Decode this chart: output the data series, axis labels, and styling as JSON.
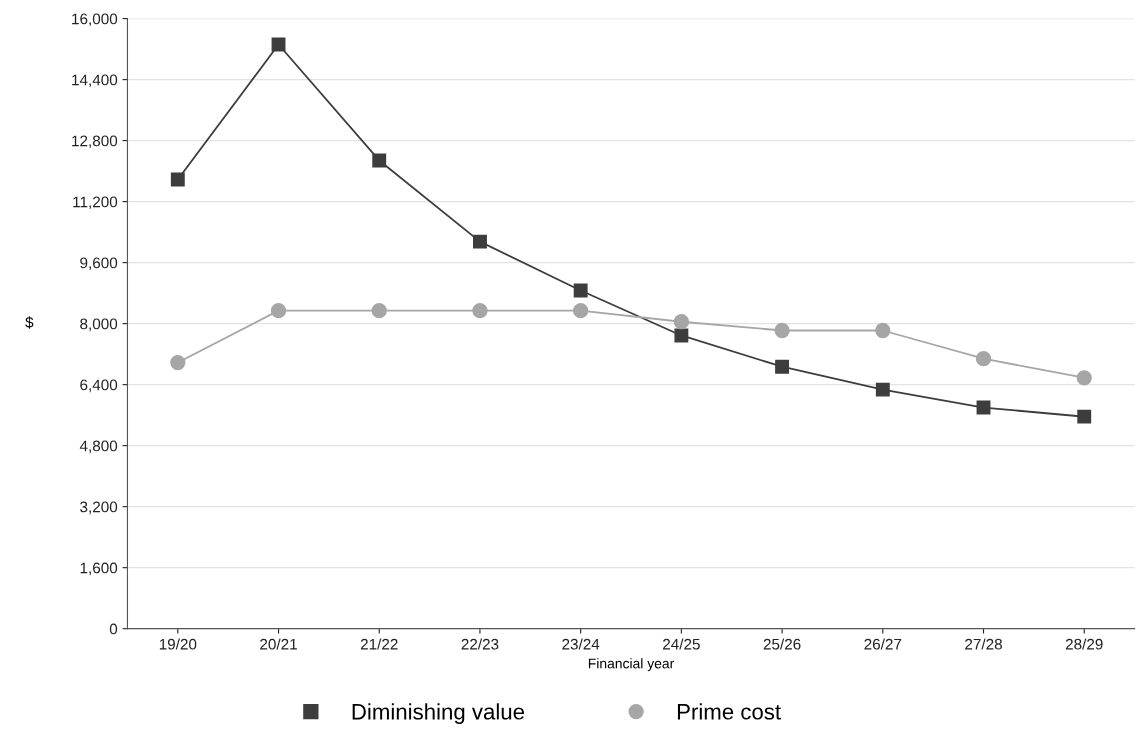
{
  "chart_data": {
    "type": "line",
    "xlabel": "Financial year",
    "ylabel": "$",
    "categories": [
      "19/20",
      "20/21",
      "21/22",
      "22/23",
      "23/24",
      "24/25",
      "25/26",
      "26/27",
      "27/28",
      "28/29"
    ],
    "series": [
      {
        "name": "Diminishing value",
        "color": "#3d3d3d",
        "marker": "square",
        "values": [
          11780,
          15320,
          12280,
          10150,
          8870,
          7690,
          6870,
          6270,
          5800,
          5560
        ]
      },
      {
        "name": "Prime cost",
        "color": "#a6a6a6",
        "marker": "circle",
        "values": [
          6980,
          8340,
          8340,
          8340,
          8340,
          8050,
          7820,
          7820,
          7080,
          6580
        ]
      }
    ],
    "ylim": [
      0,
      16000
    ],
    "yticks": [
      {
        "value": 0,
        "label": "0"
      },
      {
        "value": 1600,
        "label": "1,600"
      },
      {
        "value": 3200,
        "label": "3,200"
      },
      {
        "value": 4800,
        "label": "4,800"
      },
      {
        "value": 6400,
        "label": "6,400"
      },
      {
        "value": 8000,
        "label": "8,000"
      },
      {
        "value": 9600,
        "label": "9,600"
      },
      {
        "value": 11200,
        "label": "11,200"
      },
      {
        "value": 12800,
        "label": "12,800"
      },
      {
        "value": 14400,
        "label": "14,400"
      },
      {
        "value": 16000,
        "label": "16,000"
      }
    ],
    "grid": "y",
    "legend": "bottom"
  }
}
